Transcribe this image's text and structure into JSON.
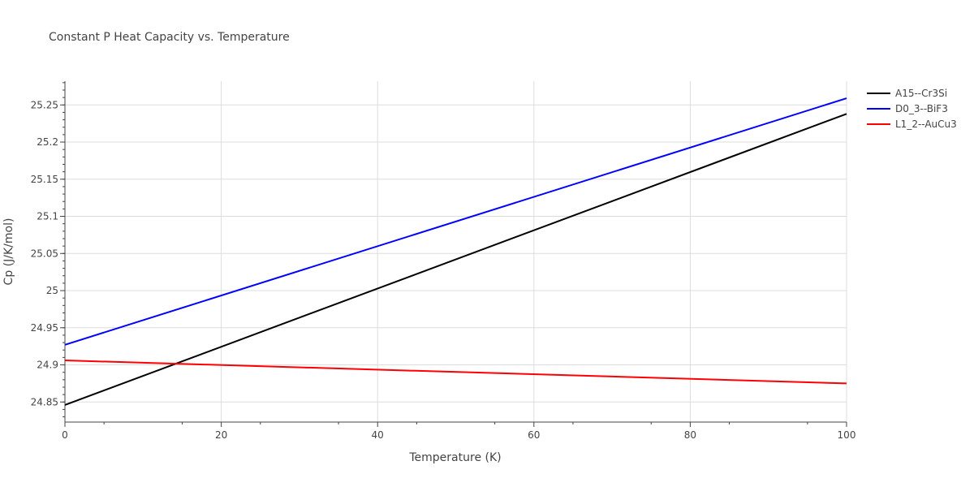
{
  "chart_data": {
    "type": "line",
    "title": "Constant P Heat Capacity vs. Temperature",
    "xlabel": "Temperature (K)",
    "ylabel": "Cp (J/K/mol)",
    "xlim": [
      0,
      100
    ],
    "ylim": [
      24.823,
      25.282
    ],
    "x_ticks": [
      0,
      20,
      40,
      60,
      80,
      100
    ],
    "y_ticks": [
      24.85,
      24.9,
      24.95,
      25,
      25.05,
      25.1,
      25.15,
      25.2,
      25.25
    ],
    "y_tick_labels": [
      "24.85",
      "24.9",
      "24.95",
      "25",
      "25.05",
      "25.1",
      "25.15",
      "25.2",
      "25.25"
    ],
    "grid": true,
    "legend_position": "top-right",
    "series": [
      {
        "name": "A15--Cr3Si",
        "color": "#000000",
        "x": [
          0,
          100
        ],
        "y": [
          24.846,
          25.238
        ]
      },
      {
        "name": "D0_3--BiF3",
        "color": "#0000ff",
        "x": [
          0,
          100
        ],
        "y": [
          24.927,
          25.259
        ]
      },
      {
        "name": "L1_2--AuCu3",
        "color": "#ff0000",
        "x": [
          0,
          100
        ],
        "y": [
          24.906,
          24.875
        ]
      }
    ]
  }
}
